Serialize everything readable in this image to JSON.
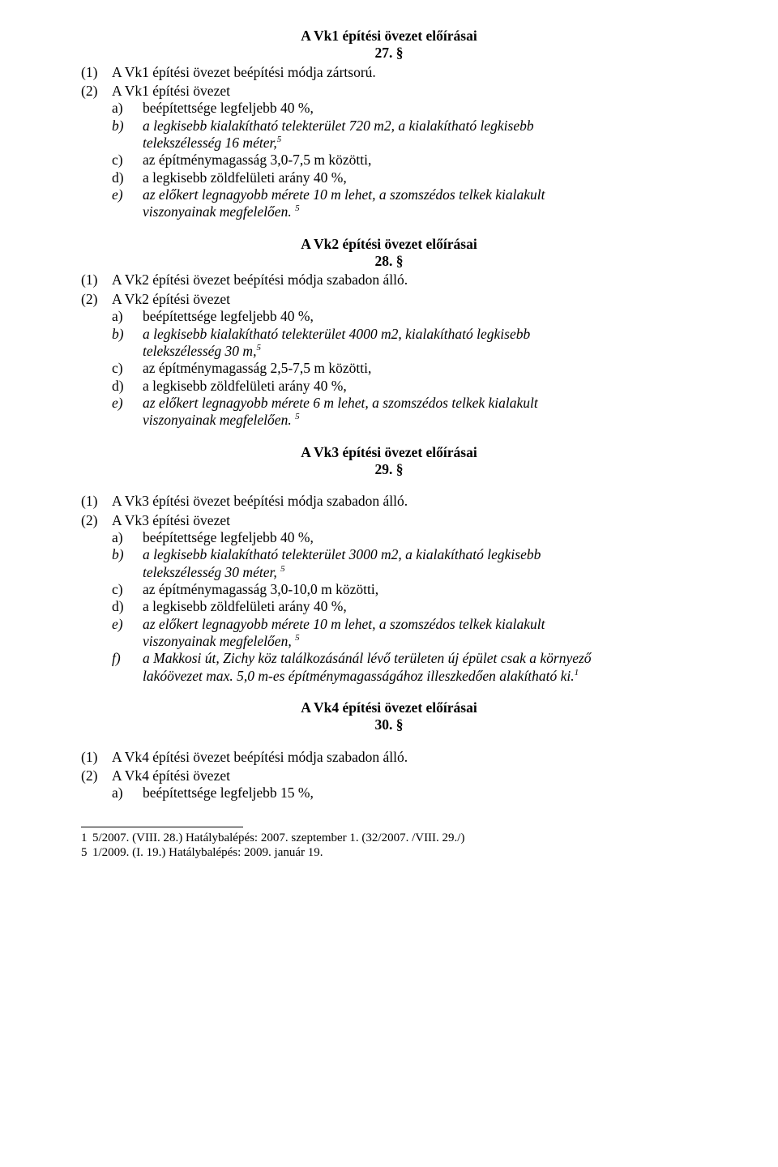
{
  "sections": {
    "s27": {
      "title": "A Vk1 építési övezet előírásai",
      "num": "27. §"
    },
    "s28": {
      "title": "A Vk2 építési övezet előírásai",
      "num": "28. §"
    },
    "s29": {
      "title": "A Vk3 építési övezet előírásai",
      "num": "29. §"
    },
    "s30": {
      "title": "A Vk4 építési övezet előírásai",
      "num": "30. §"
    }
  },
  "s27": {
    "p1_m": "(1)",
    "p1_t": "A Vk1 építési övezet beépítési módja zártsorú.",
    "p2_m": "(2)",
    "p2_t": "A Vk1 építési övezet",
    "a_m": "a)",
    "a_t": "beépítettsége legfeljebb 40 %,",
    "b_m": "b)",
    "b_t1": "a legkisebb kialakítható telekterület 720 m2, a kialakítható legkisebb",
    "b_t2_pre": "telekszélesség 16 méter,",
    "b_fn": "5",
    "c_m": "c)",
    "c_t": "az építménymagasság 3,0-7,5 m közötti,",
    "d_m": "d)",
    "d_t": "a legkisebb zöldfelületi arány 40 %,",
    "e_m": "e)",
    "e_t1": "az előkert legnagyobb mérete 10 m lehet, a szomszédos telkek kialakult",
    "e_t2_pre": "viszonyainak megfelelően.",
    "e_fn": "5"
  },
  "s28": {
    "p1_m": "(1)",
    "p1_t": "A Vk2 építési övezet beépítési módja szabadon álló.",
    "p2_m": "(2)",
    "p2_t": "A Vk2 építési övezet",
    "a_m": "a)",
    "a_t": "beépítettsége legfeljebb 40 %,",
    "b_m": "b)",
    "b_t1": "a legkisebb kialakítható telekterület 4000 m2, kialakítható legkisebb",
    "b_t2_pre": "telekszélesség 30 m,",
    "b_fn": "5",
    "c_m": "c)",
    "c_t": "az építménymagasság 2,5-7,5 m közötti,",
    "d_m": "d)",
    "d_t": "a legkisebb zöldfelületi arány 40 %,",
    "e_m": "e)",
    "e_t1": "az előkert legnagyobb mérete 6 m lehet, a szomszédos telkek kialakult",
    "e_t2_pre": "viszonyainak megfelelően.",
    "e_fn": "5"
  },
  "s29": {
    "p1_m": "(1)",
    "p1_t": "A Vk3 építési övezet beépítési módja szabadon álló.",
    "p2_m": "(2)",
    "p2_t": "A Vk3 építési övezet",
    "a_m": "a)",
    "a_t": "beépítettsége legfeljebb 40 %,",
    "b_m": "b)",
    "b_t1": "a legkisebb kialakítható telekterület 3000 m2, a kialakítható legkisebb",
    "b_t2_pre": "telekszélesség 30 méter, ",
    "b_fn": "5",
    "c_m": "c)",
    "c_t": "az építménymagasság 3,0-10,0 m közötti,",
    "d_m": "d)",
    "d_t": "a legkisebb zöldfelületi arány 40 %,",
    "e_m": "e)",
    "e_t1": "az előkert legnagyobb mérete 10 m lehet, a szomszédos telkek kialakult",
    "e_t2_pre": "viszonyainak megfelelően, ",
    "e_fn": "5",
    "f_m": "f)",
    "f_t1": "a Makkosi út, Zichy köz találkozásánál lévő területen új épület csak a környező",
    "f_t2_pre": "lakóövezet max. 5,0 m-es építménymagasságához illeszkedően alakítható ki.",
    "f_fn": "1"
  },
  "s30": {
    "p1_m": "(1)",
    "p1_t": "A Vk4 építési övezet beépítési módja szabadon álló.",
    "p2_m": "(2)",
    "p2_t": "A Vk4 építési övezet",
    "a_m": "a)",
    "a_t": "beépítettsége legfeljebb 15 %,"
  },
  "footnotes": {
    "f1_m": "1",
    "f1_t": "5/2007. (VIII. 28.) Hatálybalépés: 2007. szeptember 1. (32/2007. /VIII. 29./)",
    "f5_m": "5",
    "f5_t": "1/2009. (I. 19.) Hatálybalépés: 2009. január 19."
  }
}
